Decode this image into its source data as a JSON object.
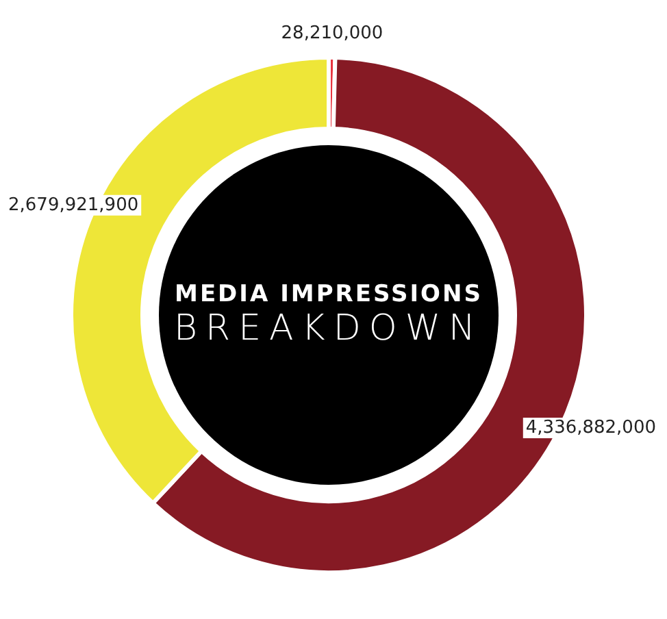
{
  "chart_data": {
    "type": "donut",
    "title": "MEDIA IMPRESSIONS",
    "subtitle": "BREAKDOWN",
    "categories": [
      null,
      null,
      null
    ],
    "values": [
      28210000,
      4336882000,
      2679921900
    ],
    "colors": [
      "#e8343f",
      "#861a24",
      "#eee638"
    ],
    "value_labels": [
      "28,210,000",
      "4,336,882,000",
      "2,679,921,900"
    ]
  }
}
